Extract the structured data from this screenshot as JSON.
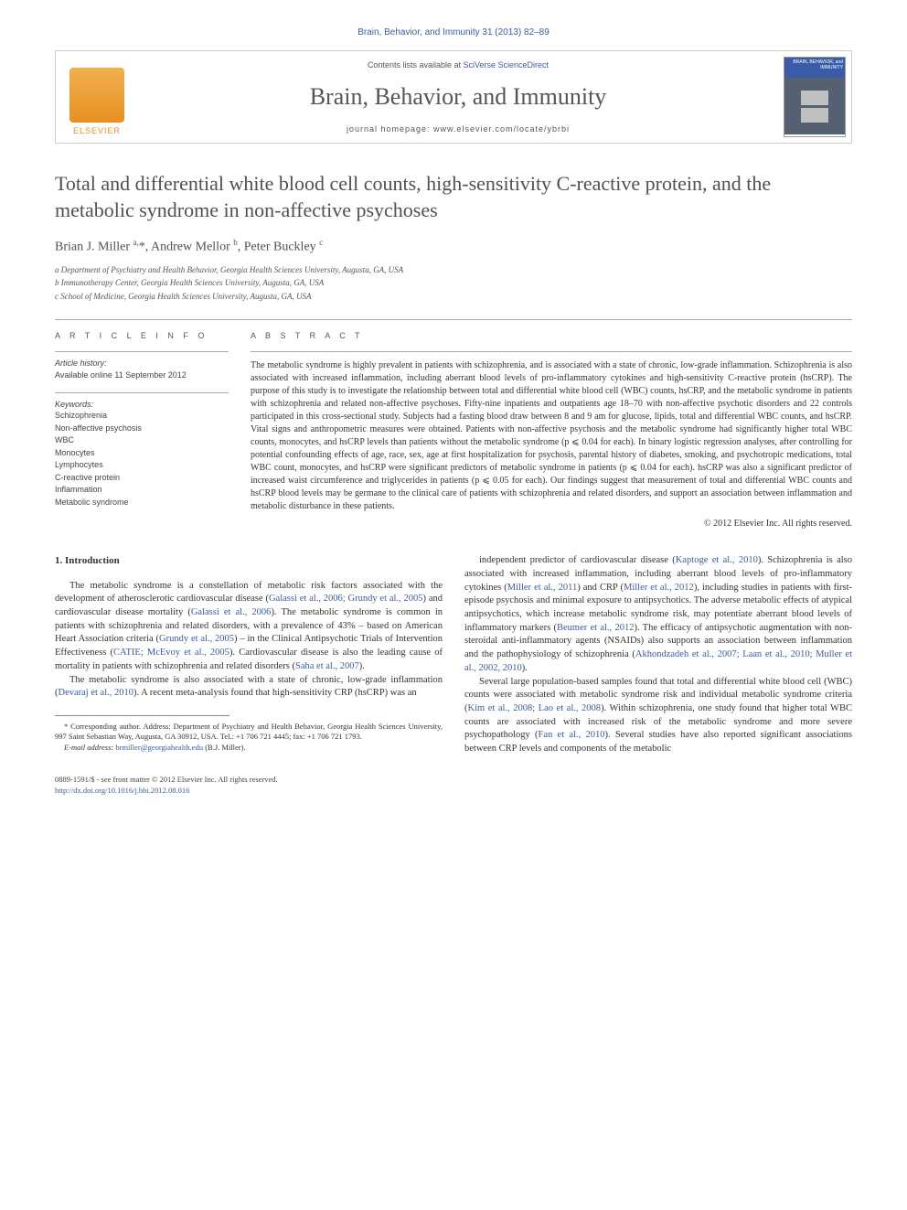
{
  "running_head": "Brain, Behavior, and Immunity 31 (2013) 82–89",
  "masthead": {
    "publisher_label": "ELSEVIER",
    "contents_prefix": "Contents lists available at ",
    "contents_link": "SciVerse ScienceDirect",
    "journal_name": "Brain, Behavior, and Immunity",
    "homepage_prefix": "journal homepage: ",
    "homepage_url": "www.elsevier.com/locate/ybrbi",
    "cover_title": "BRAIN, BEHAVIOR, and IMMUNITY"
  },
  "article": {
    "title": "Total and differential white blood cell counts, high-sensitivity C-reactive protein, and the metabolic syndrome in non-affective psychoses",
    "authors_html": "Brian J. Miller <sup>a,</sup>*, Andrew Mellor <sup>b</sup>, Peter Buckley <sup>c</sup>",
    "affiliations": [
      "a Department of Psychiatry and Health Behavior, Georgia Health Sciences University, Augusta, GA, USA",
      "b Immunotherapy Center, Georgia Health Sciences University, Augusta, GA, USA",
      "c School of Medicine, Georgia Health Sciences University, Augusta, GA, USA"
    ]
  },
  "info": {
    "heading": "A R T I C L E   I N F O",
    "history_label": "Article history:",
    "history_value": "Available online 11 September 2012",
    "keywords_label": "Keywords:",
    "keywords": [
      "Schizophrenia",
      "Non-affective psychosis",
      "WBC",
      "Monocytes",
      "Lymphocytes",
      "C-reactive protein",
      "Inflammation",
      "Metabolic syndrome"
    ]
  },
  "abstract": {
    "heading": "A B S T R A C T",
    "text": "The metabolic syndrome is highly prevalent in patients with schizophrenia, and is associated with a state of chronic, low-grade inflammation. Schizophrenia is also associated with increased inflammation, including aberrant blood levels of pro-inflammatory cytokines and high-sensitivity C-reactive protein (hsCRP). The purpose of this study is to investigate the relationship between total and differential white blood cell (WBC) counts, hsCRP, and the metabolic syndrome in patients with schizophrenia and related non-affective psychoses. Fifty-nine inpatients and outpatients age 18–70 with non-affective psychotic disorders and 22 controls participated in this cross-sectional study. Subjects had a fasting blood draw between 8 and 9 am for glucose, lipids, total and differential WBC counts, and hsCRP. Vital signs and anthropometric measures were obtained. Patients with non-affective psychosis and the metabolic syndrome had significantly higher total WBC counts, monocytes, and hsCRP levels than patients without the metabolic syndrome (p ⩽ 0.04 for each). In binary logistic regression analyses, after controlling for potential confounding effects of age, race, sex, age at first hospitalization for psychosis, parental history of diabetes, smoking, and psychotropic medications, total WBC count, monocytes, and hsCRP were significant predictors of metabolic syndrome in patients (p ⩽ 0.04 for each). hsCRP was also a significant predictor of increased waist circumference and triglycerides in patients (p ⩽ 0.05 for each). Our findings suggest that measurement of total and differential WBC counts and hsCRP blood levels may be germane to the clinical care of patients with schizophrenia and related disorders, and support an association between inflammation and metabolic disturbance in these patients.",
    "copyright": "© 2012 Elsevier Inc. All rights reserved."
  },
  "body": {
    "intro_heading": "1. Introduction",
    "col1_p1": "The metabolic syndrome is a constellation of metabolic risk factors associated with the development of atherosclerotic cardiovascular disease (Galassi et al., 2006; Grundy et al., 2005) and cardiovascular disease mortality (Galassi et al., 2006). The metabolic syndrome is common in patients with schizophrenia and related disorders, with a prevalence of 43% – based on American Heart Association criteria (Grundy et al., 2005) – in the Clinical Antipsychotic Trials of Intervention Effectiveness (CATIE; McEvoy et al., 2005). Cardiovascular disease is also the leading cause of mortality in patients with schizophrenia and related disorders (Saha et al., 2007).",
    "col1_p2": "The metabolic syndrome is also associated with a state of chronic, low-grade inflammation (Devaraj et al., 2010). A recent meta-analysis found that high-sensitivity CRP (hsCRP) was an",
    "col2_p1": "independent predictor of cardiovascular disease (Kaptoge et al., 2010). Schizophrenia is also associated with increased inflammation, including aberrant blood levels of pro-inflammatory cytokines (Miller et al., 2011) and CRP (Miller et al., 2012), including studies in patients with first-episode psychosis and minimal exposure to antipsychotics. The adverse metabolic effects of atypical antipsychotics, which increase metabolic syndrome risk, may potentiate aberrant blood levels of inflammatory markers (Beumer et al., 2012). The efficacy of antipsychotic augmentation with non-steroidal anti-inflammatory agents (NSAIDs) also supports an association between inflammation and the pathophysiology of schizophrenia (Akhondzadeh et al., 2007; Laan et al., 2010; Muller et al., 2002, 2010).",
    "col2_p2": "Several large population-based samples found that total and differential white blood cell (WBC) counts were associated with metabolic syndrome risk and individual metabolic syndrome criteria (Kim et al., 2008; Lao et al., 2008). Within schizophrenia, one study found that higher total WBC counts are associated with increased risk of the metabolic syndrome and more severe psychopathology (Fan et al., 2010). Several studies have also reported significant associations between CRP levels and components of the metabolic"
  },
  "footnote": {
    "corr": "* Corresponding author. Address: Department of Psychiatry and Health Behavior, Georgia Health Sciences University, 997 Saint Sebastian Way, Augusta, GA 30912, USA. Tel.: +1 706 721 4445; fax: +1 706 721 1793.",
    "email_label": "E-mail address: ",
    "email": "brmiller@georgiahealth.edu",
    "email_suffix": " (B.J. Miller)."
  },
  "footer": {
    "issn_line": "0889-1591/$ - see front matter © 2012 Elsevier Inc. All rights reserved.",
    "doi_url": "http://dx.doi.org/10.1016/j.bbi.2012.08.016"
  },
  "colors": {
    "link": "#3a5ca8",
    "accent": "#e89020",
    "text": "#333333",
    "muted": "#555555",
    "rule": "#aaaaaa"
  }
}
